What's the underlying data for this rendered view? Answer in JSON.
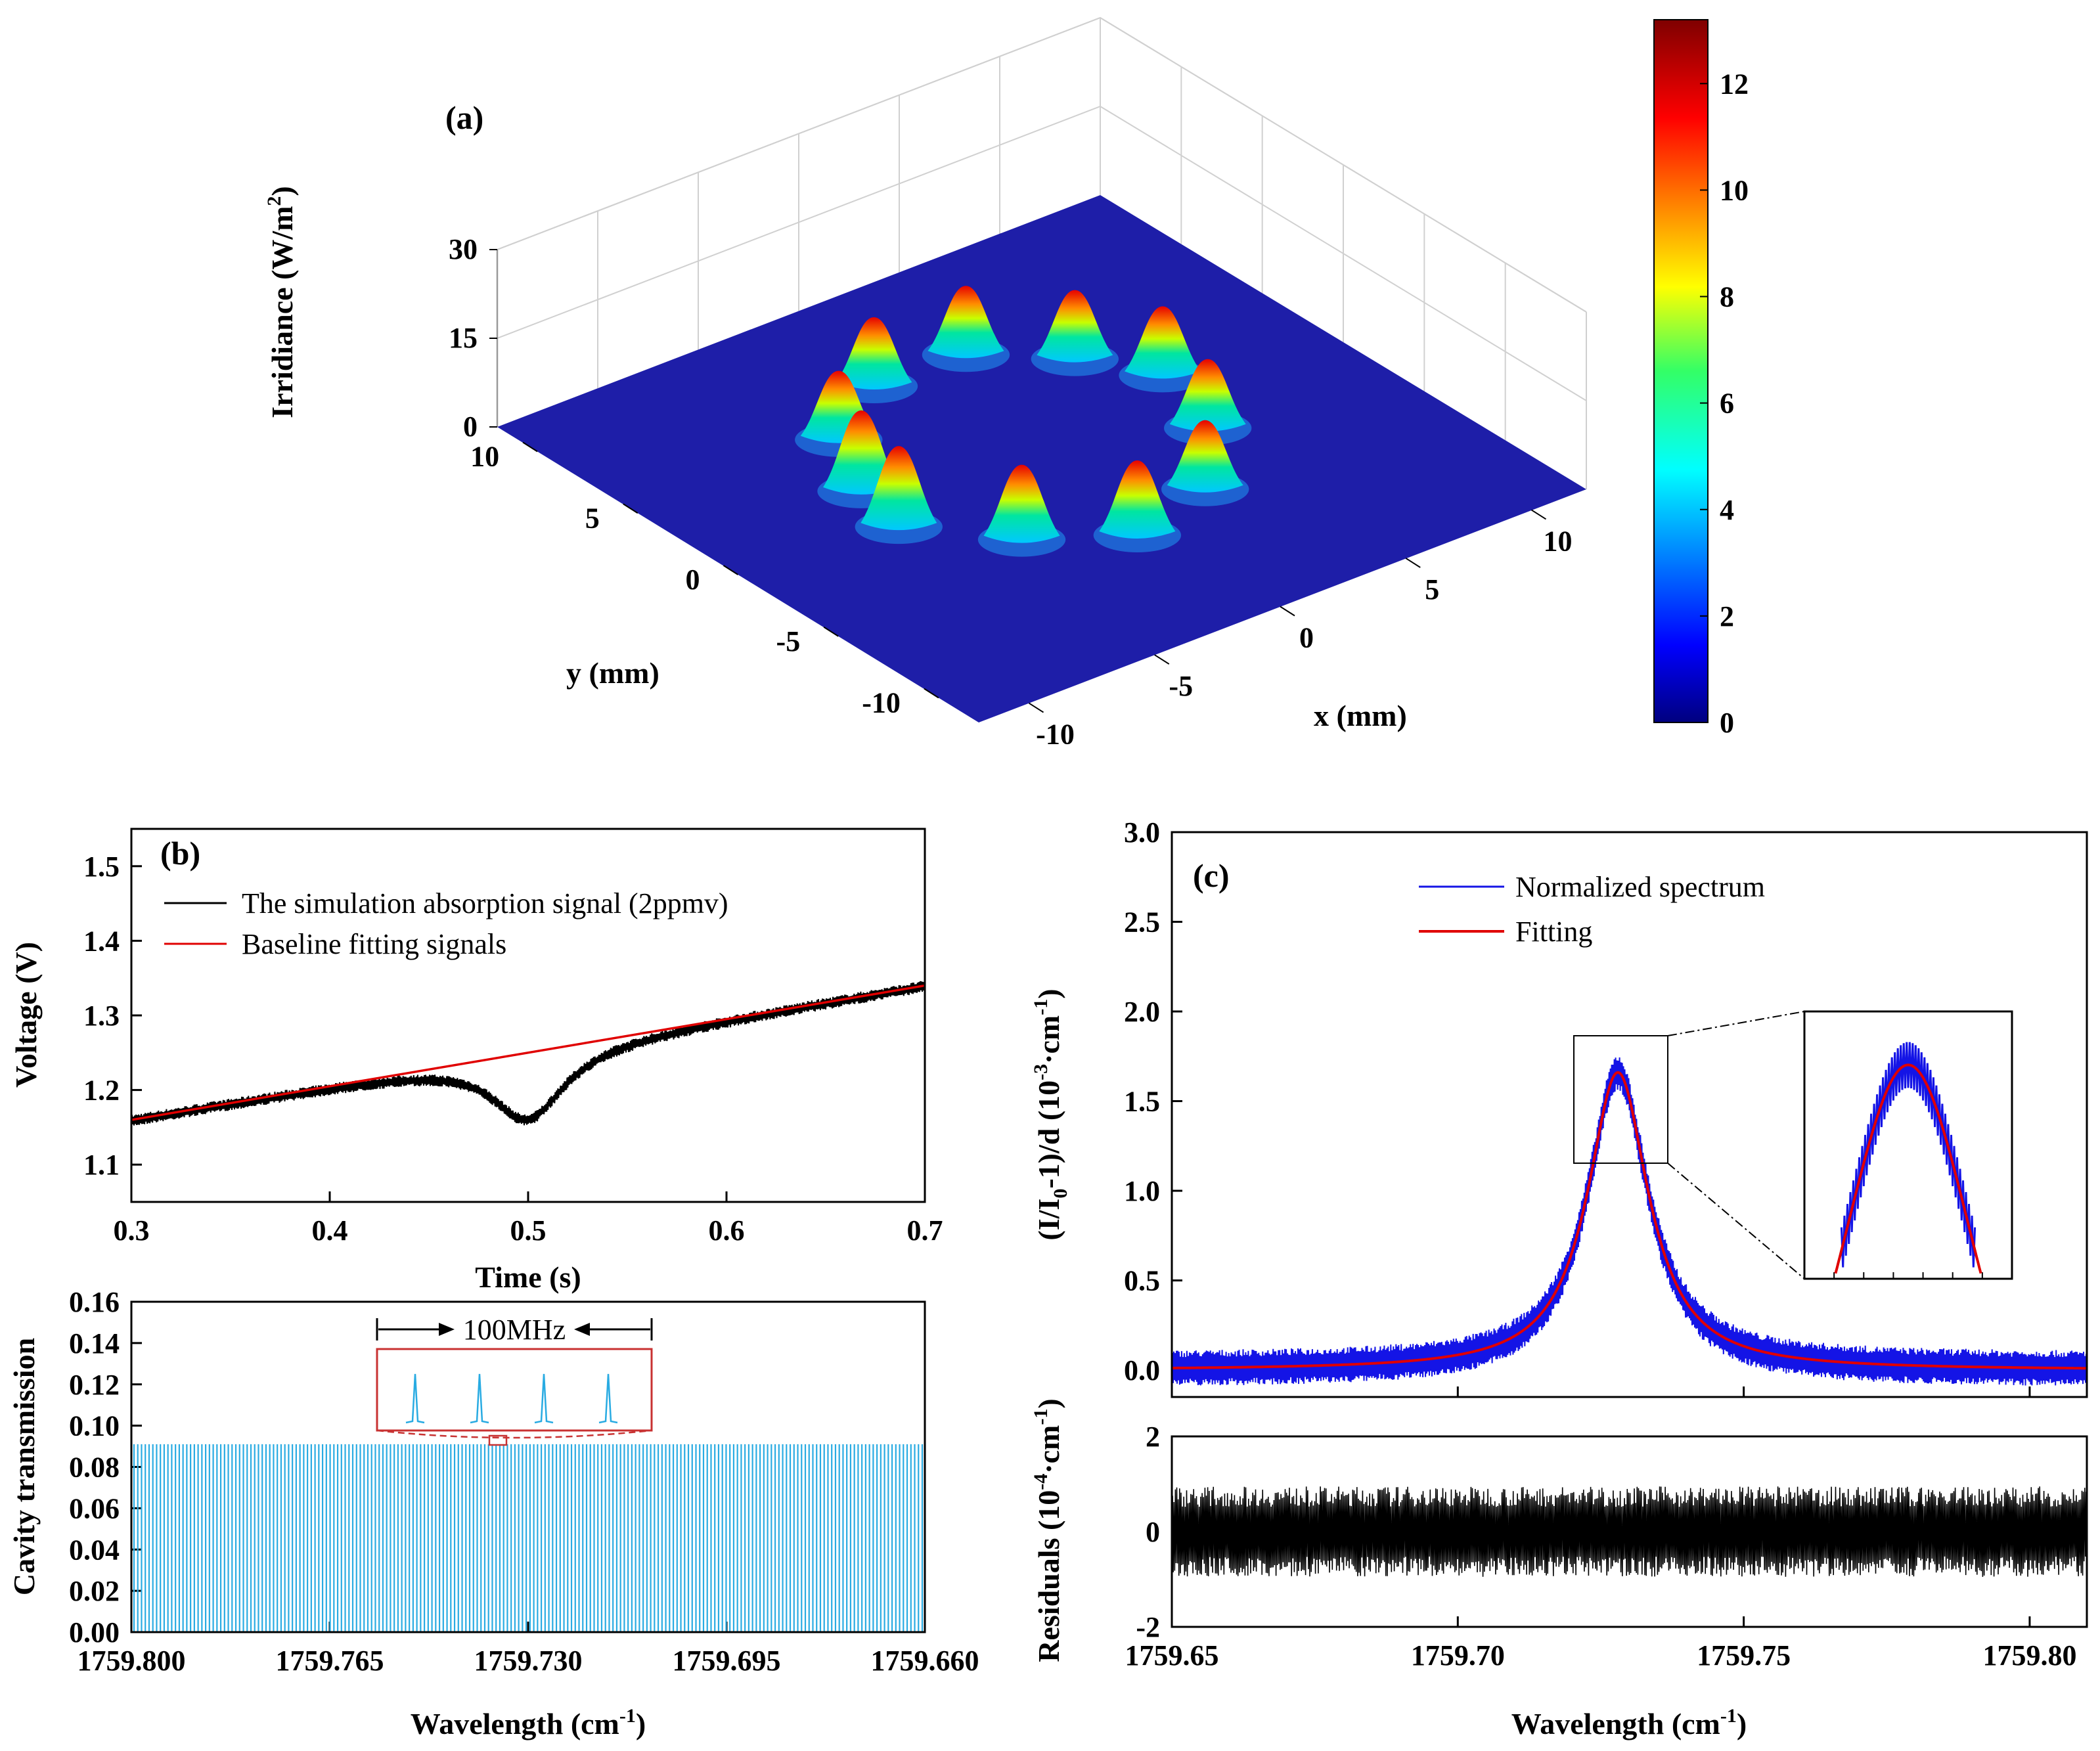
{
  "figure": {
    "panels": [
      "a",
      "b",
      "b_lower",
      "c",
      "c_lower"
    ]
  },
  "chart_data": [
    {
      "id": "a",
      "type": "surface3d",
      "label": "(a)",
      "xlabel": "x (mm)",
      "ylabel": "y (mm)",
      "zlabel": "Irridiance (W/m2)",
      "zlabel_parts": [
        "Irridiance (W/m",
        "2",
        ")"
      ],
      "xticks": [
        "-10",
        "-5",
        "0",
        "5",
        "10"
      ],
      "xtick_values": [
        -10,
        -5,
        0,
        5,
        10
      ],
      "yticks": [
        "-10",
        "-5",
        "0",
        "5",
        "10"
      ],
      "ytick_values": [
        -10,
        -5,
        0,
        5,
        10
      ],
      "zticks": [
        "0",
        "15",
        "30"
      ],
      "zlim": [
        0,
        30
      ],
      "xlim": [
        -12,
        12
      ],
      "ylim": [
        -12,
        12
      ],
      "peaks": [
        {
          "x": -5.5,
          "y": 2.0,
          "z": 13
        },
        {
          "x": -4.0,
          "y": 5.0,
          "z": 11
        },
        {
          "x": -1.0,
          "y": 7.0,
          "z": 11
        },
        {
          "x": 2.5,
          "y": 6.8,
          "z": 11
        },
        {
          "x": 5.0,
          "y": 4.5,
          "z": 11
        },
        {
          "x": 6.5,
          "y": 2.0,
          "z": 11
        },
        {
          "x": 5.5,
          "y": -1.5,
          "z": 11
        },
        {
          "x": 3.0,
          "y": -4.5,
          "z": 11
        },
        {
          "x": -0.5,
          "y": -5.5,
          "z": 12
        },
        {
          "x": -3.5,
          "y": -3.5,
          "z": 12
        },
        {
          "x": -6.0,
          "y": -0.5,
          "z": 13
        }
      ],
      "colorbar": {
        "min": 0,
        "max": 13.2,
        "ticks": [
          "0",
          "2",
          "4",
          "6",
          "8",
          "10",
          "12"
        ],
        "tick_values": [
          0,
          2,
          4,
          6,
          8,
          10,
          12
        ]
      }
    },
    {
      "id": "b",
      "type": "line",
      "label": "(b)",
      "xlabel": "Time (s)",
      "ylabel": "Voltage (V)",
      "xlim": [
        0.3,
        0.7
      ],
      "ylim": [
        1.05,
        1.55
      ],
      "xticks": [
        "0.3",
        "0.4",
        "0.5",
        "0.6",
        "0.7"
      ],
      "xtick_values": [
        0.3,
        0.4,
        0.5,
        0.6,
        0.7
      ],
      "yticks": [
        "1.1",
        "1.2",
        "1.3",
        "1.4",
        "1.5"
      ],
      "ytick_values": [
        1.1,
        1.2,
        1.3,
        1.4,
        1.5
      ],
      "series": [
        {
          "name": "The simulation absorption signal (2ppmv)",
          "color": "#000000",
          "baseline": {
            "x0": 0.3,
            "y0": 1.16,
            "x1": 0.7,
            "y1": 1.34
          },
          "dip": {
            "center": 0.5,
            "depth": 0.09,
            "width": 0.022
          }
        },
        {
          "name": "Baseline fitting signals",
          "color": "#e00000",
          "x": [
            0.3,
            0.7
          ],
          "y": [
            1.16,
            1.34
          ]
        }
      ]
    },
    {
      "id": "b_lower",
      "type": "comb",
      "xlabel": "Wavelength (cm-1)",
      "xlabel_parts": [
        "Wavelength (cm",
        "-1",
        ")"
      ],
      "ylabel": "Cavity transmission",
      "xlim": [
        1759.8,
        1759.66
      ],
      "ylim": [
        0,
        0.16
      ],
      "xticks": [
        "1759.800",
        "1759.765",
        "1759.730",
        "1759.695",
        "1759.660"
      ],
      "xtick_values": [
        1759.8,
        1759.765,
        1759.73,
        1759.695,
        1759.66
      ],
      "yticks": [
        "0.00",
        "0.02",
        "0.04",
        "0.06",
        "0.08",
        "0.10",
        "0.12",
        "0.14",
        "0.16"
      ],
      "ytick_values": [
        0,
        0.02,
        0.04,
        0.06,
        0.08,
        0.1,
        0.12,
        0.14,
        0.16
      ],
      "peak_value": 0.091,
      "line_count": 210,
      "color": "#29abe2",
      "inset": {
        "label": "100MHz",
        "peaks": 4
      }
    },
    {
      "id": "c",
      "type": "line",
      "label": "(c)",
      "ylabel": "(I/I0-1)/d (10-3·cm-1)",
      "xlim": [
        1759.65,
        1759.81
      ],
      "ylim": [
        -0.15,
        3.0
      ],
      "xticks": [
        "1759.65",
        "1759.70",
        "1759.75",
        "1759.80"
      ],
      "xtick_values": [
        1759.65,
        1759.7,
        1759.75,
        1759.8
      ],
      "yticks": [
        "0.0",
        "0.5",
        "1.0",
        "1.5",
        "2.0",
        "2.5",
        "3.0"
      ],
      "ytick_values": [
        0,
        0.5,
        1.0,
        1.5,
        2.0,
        2.5,
        3.0
      ],
      "peak": {
        "center": 1759.728,
        "amplitude": 1.66,
        "hwhm": 0.0065
      },
      "series": [
        {
          "name": "Normalized spectrum",
          "color": "#1414e6"
        },
        {
          "name": "Fitting",
          "color": "#e00000"
        }
      ]
    },
    {
      "id": "c_lower",
      "type": "line",
      "xlabel": "Wavelength (cm-1)",
      "xlabel_parts": [
        "Wavelength (cm",
        "-1",
        ")"
      ],
      "ylabel": "Residuals (10-4·cm-1)",
      "xlim": [
        1759.65,
        1759.81
      ],
      "ylim": [
        -2,
        2
      ],
      "xticks": [
        "1759.65",
        "1759.70",
        "1759.75",
        "1759.80"
      ],
      "xtick_values": [
        1759.65,
        1759.7,
        1759.75,
        1759.8
      ],
      "yticks": [
        "-2",
        "0",
        "2"
      ],
      "ytick_values": [
        -2,
        0,
        2
      ],
      "amplitude": 0.95,
      "color": "#000000"
    }
  ]
}
